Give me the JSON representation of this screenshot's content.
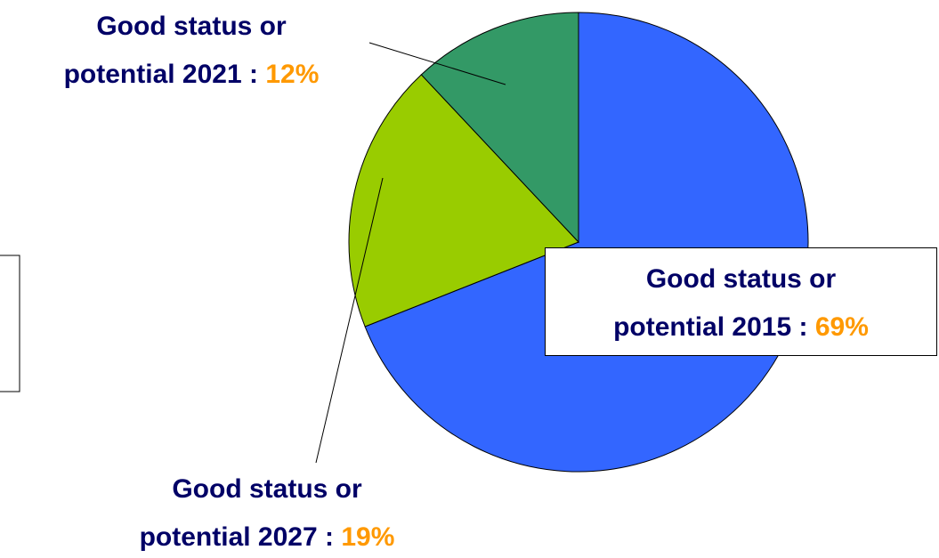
{
  "chart_data": {
    "type": "pie",
    "categories": [
      "Good status  or\npotential 2015 :",
      "Good status or\npotential 2027 :",
      "Good status or\npotential 2021 :"
    ],
    "values": [
      69,
      19,
      12
    ],
    "value_labels": [
      "69%",
      "19%",
      "12%"
    ],
    "colors": [
      "#3366ff",
      "#99cc00",
      "#339966"
    ]
  }
}
